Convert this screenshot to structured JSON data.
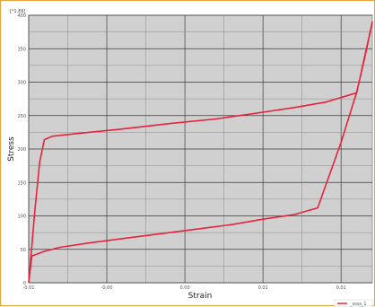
{
  "chart_data": {
    "type": "line",
    "title": "",
    "xlabel": "Strain",
    "ylabel": "Stress",
    "y_unit": "[*1.E6]",
    "xlim": [
      -0.005,
      0.017
    ],
    "ylim": [
      0,
      400
    ],
    "x_ticks": [
      -0.005,
      0.0,
      0.005,
      0.01,
      0.015
    ],
    "y_ticks": [
      0,
      50,
      100,
      150,
      200,
      250,
      300,
      350,
      400
    ],
    "x_tick_labels": [
      "-0.01",
      "-0.00",
      "0.00",
      "0.01",
      "0.01"
    ],
    "y_tick_labels": [
      "0",
      "50",
      "100",
      "150",
      "200",
      "250",
      "300",
      "350",
      "400"
    ],
    "grid": true,
    "legend_position": "bottom-right",
    "series": [
      {
        "name": "_ssss_1",
        "color": "#e8223a",
        "points": [
          [
            -0.005,
            0
          ],
          [
            -0.0048,
            40
          ],
          [
            -0.004,
            47
          ],
          [
            -0.003,
            53
          ],
          [
            -0.001,
            60
          ],
          [
            0.002,
            69
          ],
          [
            0.005,
            78
          ],
          [
            0.008,
            87
          ],
          [
            0.01,
            95
          ],
          [
            0.012,
            102
          ],
          [
            0.0135,
            112
          ],
          [
            0.015,
            210
          ],
          [
            0.016,
            285
          ],
          [
            0.0165,
            335
          ],
          [
            0.017,
            390
          ],
          [
            0.016,
            284
          ],
          [
            0.014,
            270
          ],
          [
            0.012,
            262
          ],
          [
            0.01,
            255
          ],
          [
            0.007,
            245
          ],
          [
            0.004,
            238
          ],
          [
            0.001,
            230
          ],
          [
            -0.002,
            223
          ],
          [
            -0.0035,
            219
          ],
          [
            -0.004,
            214
          ],
          [
            -0.0043,
            180
          ],
          [
            -0.0046,
            110
          ],
          [
            -0.005,
            0
          ]
        ]
      }
    ]
  }
}
